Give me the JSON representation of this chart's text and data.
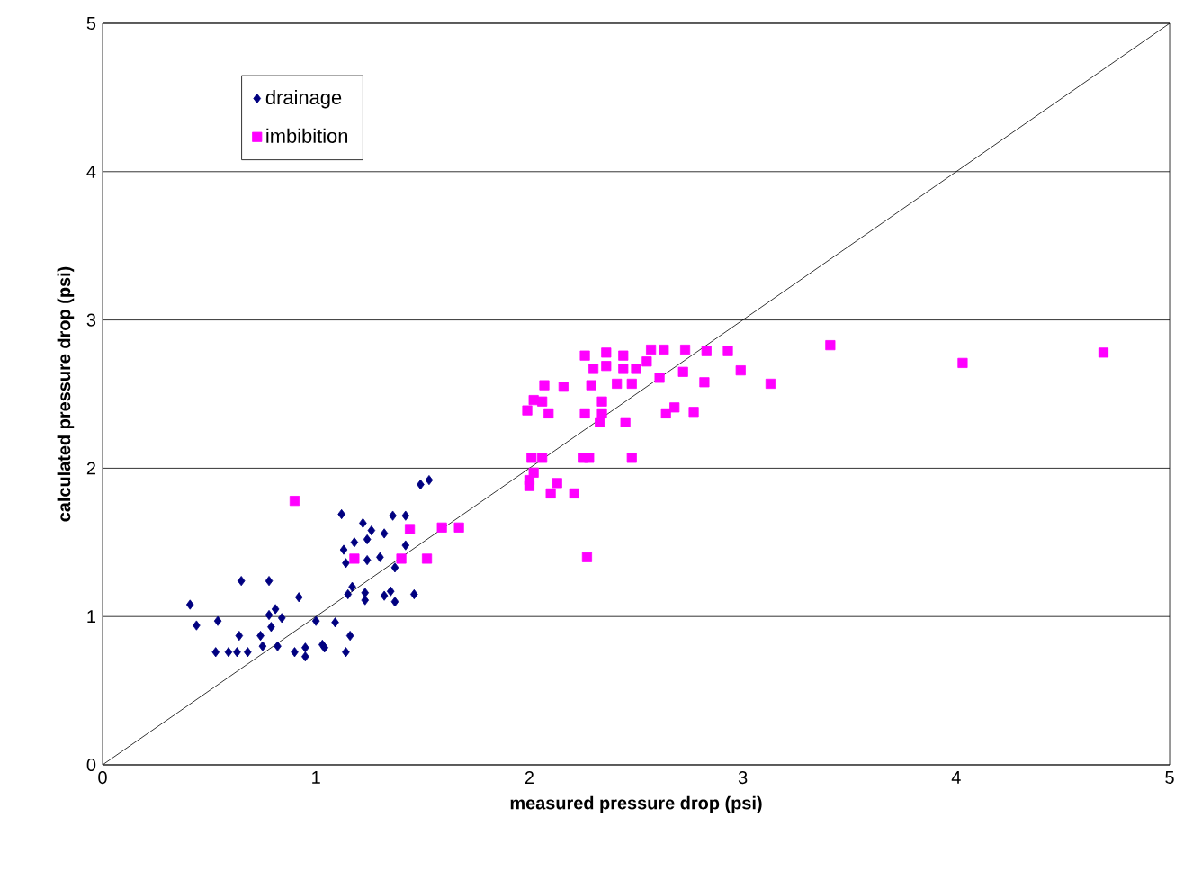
{
  "chart_data": {
    "type": "scatter",
    "xlabel": "measured pressure drop (psi)",
    "ylabel": "calculated pressure drop (psi)",
    "xlim": [
      0,
      5
    ],
    "ylim": [
      0,
      5
    ],
    "xticks": [
      0,
      1,
      2,
      3,
      4,
      5
    ],
    "yticks": [
      0,
      1,
      2,
      3,
      4,
      5
    ],
    "grid": "y",
    "legend": "top left",
    "series": [
      {
        "name": "drainage",
        "color": "#000080",
        "marker": "diamond",
        "x": [
          0.41,
          0.44,
          0.54,
          0.53,
          0.59,
          0.64,
          0.65,
          0.63,
          0.68,
          0.74,
          0.75,
          0.78,
          0.78,
          0.81,
          0.79,
          0.82,
          0.84,
          0.92,
          0.9,
          0.95,
          0.95,
          1.0,
          1.03,
          1.04,
          1.09,
          1.14,
          1.16,
          1.15,
          1.17,
          1.23,
          1.23,
          1.32,
          1.35,
          1.37,
          1.46,
          1.13,
          1.14,
          1.18,
          1.22,
          1.24,
          1.26,
          1.3,
          1.32,
          1.36,
          1.42,
          1.42,
          1.37,
          1.12,
          1.49,
          1.53,
          1.24
        ],
        "values": [
          1.08,
          0.94,
          0.97,
          0.76,
          0.76,
          0.87,
          1.24,
          0.76,
          0.76,
          0.87,
          0.8,
          1.24,
          1.01,
          1.05,
          0.93,
          0.8,
          0.99,
          1.13,
          0.76,
          0.79,
          0.73,
          0.97,
          0.81,
          0.79,
          0.96,
          0.76,
          0.87,
          1.15,
          1.2,
          1.11,
          1.16,
          1.14,
          1.17,
          1.1,
          1.15,
          1.45,
          1.36,
          1.5,
          1.63,
          1.52,
          1.58,
          1.4,
          1.56,
          1.68,
          1.68,
          1.48,
          1.33,
          1.69,
          1.89,
          1.92,
          1.38
        ]
      },
      {
        "name": "imbibition",
        "color": "#ff00ff",
        "marker": "square",
        "x": [
          0.9,
          1.44,
          1.59,
          1.67,
          1.18,
          1.4,
          1.52,
          2.26,
          2.36,
          2.44,
          2.57,
          2.63,
          2.73,
          2.83,
          2.93,
          2.99,
          2.3,
          2.36,
          2.44,
          2.5,
          2.55,
          2.61,
          2.72,
          2.41,
          2.48,
          2.82,
          2.07,
          2.16,
          2.29,
          2.02,
          2.06,
          1.99,
          2.09,
          2.26,
          2.34,
          2.34,
          2.33,
          2.45,
          2.64,
          2.68,
          2.77,
          2.01,
          2.06,
          2.25,
          2.28,
          2.48,
          2.02,
          2.0,
          2.13,
          2.1,
          2.21,
          2.0,
          2.27,
          3.41,
          3.13,
          4.03,
          4.69
        ],
        "values": [
          1.78,
          1.59,
          1.6,
          1.6,
          1.39,
          1.39,
          1.39,
          2.76,
          2.78,
          2.76,
          2.8,
          2.8,
          2.8,
          2.79,
          2.79,
          2.66,
          2.67,
          2.69,
          2.67,
          2.67,
          2.72,
          2.61,
          2.65,
          2.57,
          2.57,
          2.58,
          2.56,
          2.55,
          2.56,
          2.46,
          2.45,
          2.39,
          2.37,
          2.37,
          2.45,
          2.37,
          2.31,
          2.31,
          2.37,
          2.41,
          2.38,
          2.07,
          2.07,
          2.07,
          2.07,
          2.07,
          1.97,
          1.88,
          1.9,
          1.83,
          1.83,
          1.92,
          1.4,
          2.83,
          2.57,
          2.71,
          2.78
        ]
      },
      {
        "type": "line",
        "color": "#000000",
        "x": [
          0,
          5
        ],
        "values": [
          0,
          5
        ]
      }
    ]
  }
}
